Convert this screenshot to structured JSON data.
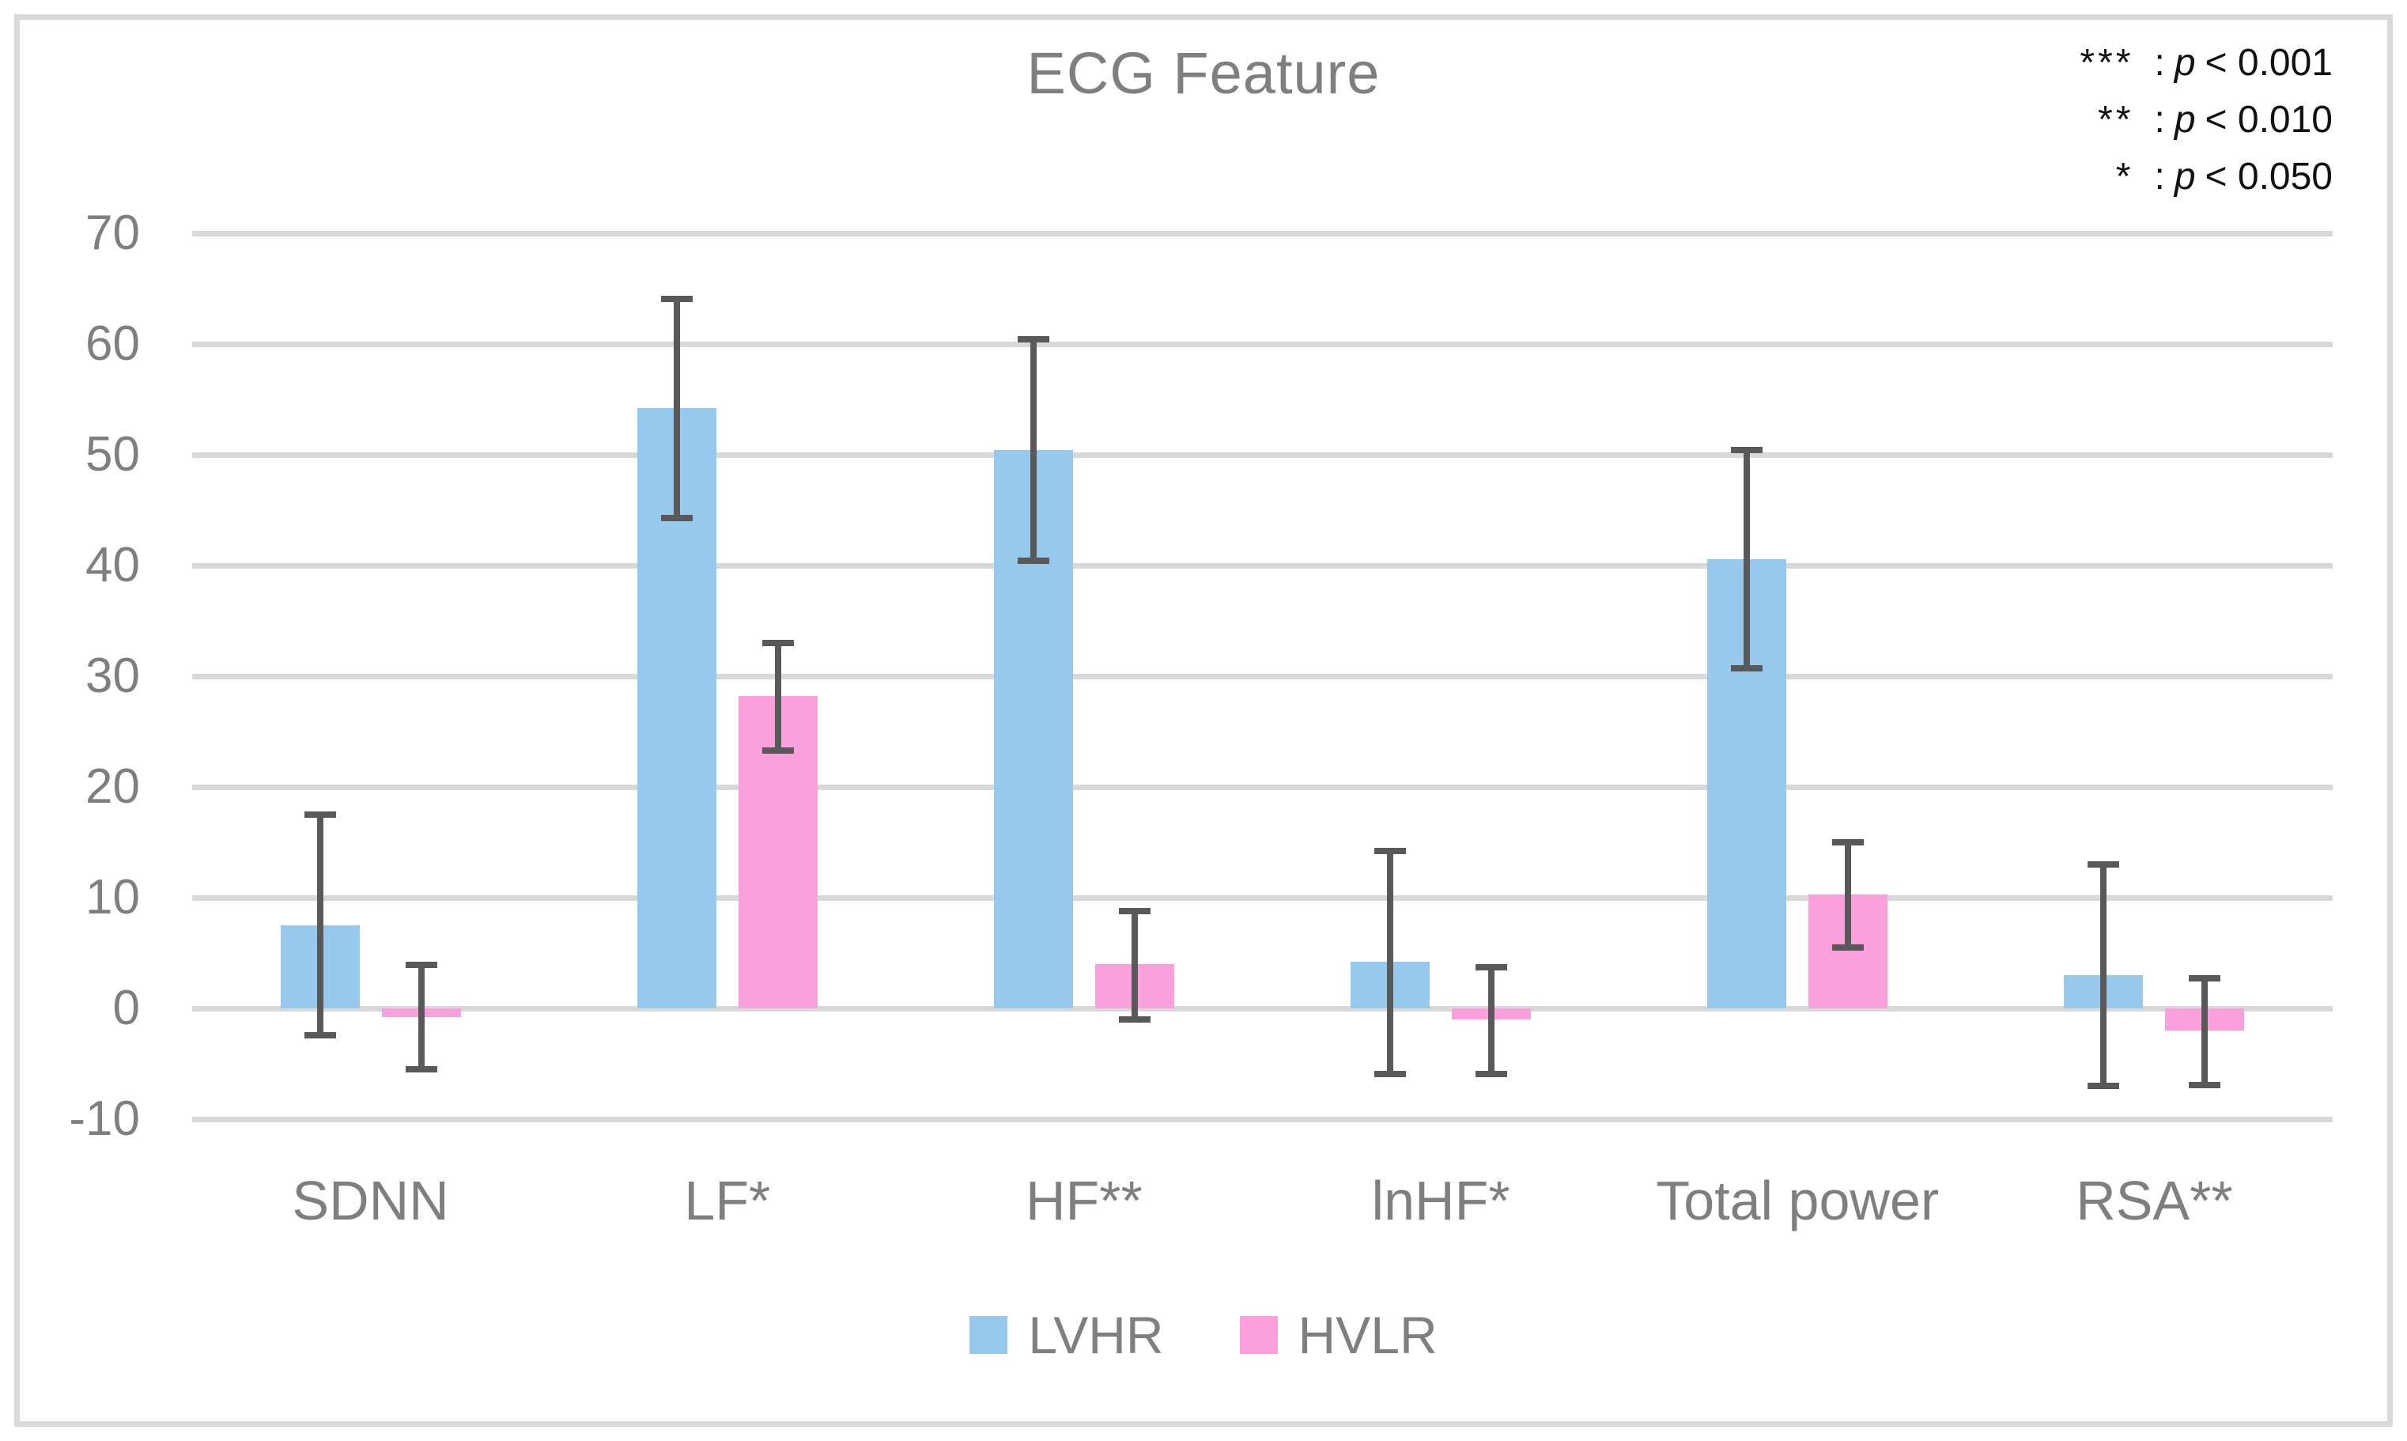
{
  "chart_data": {
    "type": "bar",
    "title": "ECG Feature",
    "categories": [
      "SDNN",
      "LF*",
      "HF**",
      "lnHF*",
      "Total power",
      "RSA**"
    ],
    "series": [
      {
        "name": "LVHR",
        "color": "#96C9EC",
        "values": [
          7.5,
          54.2,
          50.4,
          4.2,
          40.6,
          3.0
        ],
        "error_high": [
          17.5,
          64.1,
          60.4,
          14.2,
          50.4,
          13.0
        ],
        "error_low": [
          -2.4,
          44.3,
          40.4,
          -5.9,
          30.7,
          -7.0
        ]
      },
      {
        "name": "HVLR",
        "color": "#FAA0DC",
        "values": [
          -0.8,
          28.2,
          4.0,
          -1.0,
          10.3,
          -2.0
        ],
        "error_high": [
          3.9,
          33.0,
          8.8,
          3.7,
          15.0,
          2.7
        ],
        "error_low": [
          -5.5,
          23.3,
          -1.0,
          -5.9,
          5.5,
          -6.9
        ]
      }
    ],
    "ylim": [
      -10,
      70
    ],
    "ytick_step": 10,
    "grid": true,
    "legend_position": "bottom",
    "gridline_color": "#D9D9D9",
    "error_bar_color": "#595959",
    "text_color": "#7F7F7F",
    "annotation_text_color": "#111111",
    "annotations": [
      {
        "symbol": "***",
        "colon": ":",
        "var": "p",
        "condition": "< 0.001"
      },
      {
        "symbol": "**",
        "colon": ":",
        "var": "p",
        "condition": "< 0.010"
      },
      {
        "symbol": "*",
        "colon": ":",
        "var": "p",
        "condition": "< 0.050"
      }
    ]
  }
}
